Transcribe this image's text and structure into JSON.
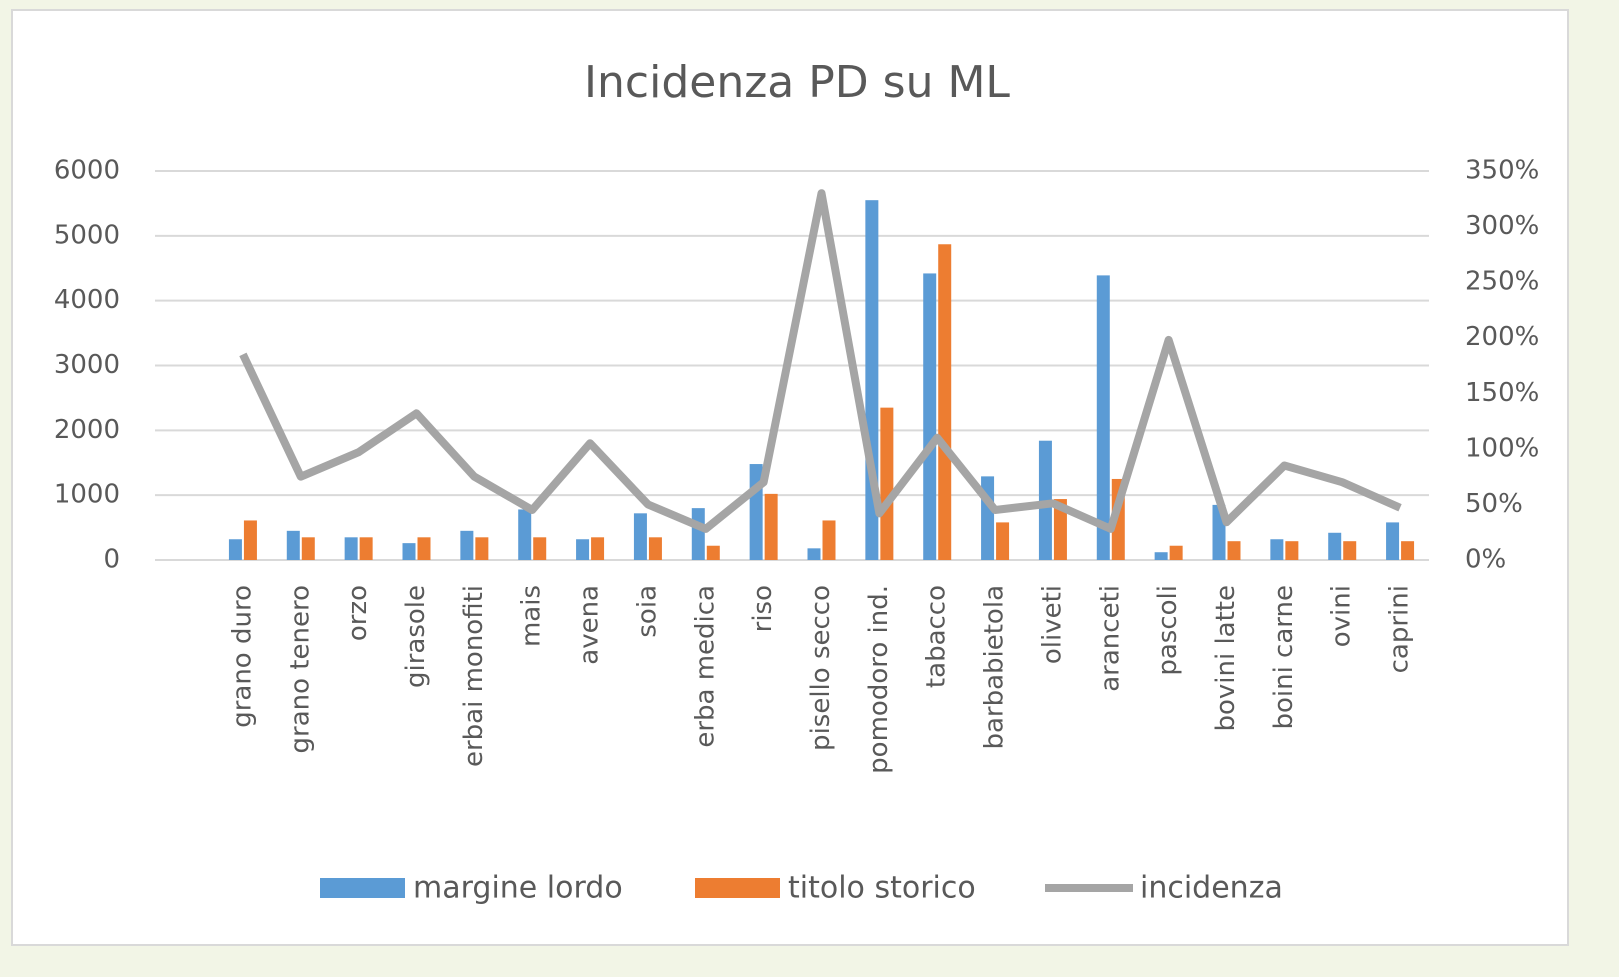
{
  "chart_data": {
    "type": "bar",
    "title": "Incidenza PD su ML",
    "categories": [
      "grano duro",
      "grano tenero",
      "orzo",
      "girasole",
      "erbai monofiti",
      "mais",
      "avena",
      "soia",
      "erba medica",
      "riso",
      "pisello  secco",
      "pomodoro ind.",
      "tabacco",
      "barbabietola",
      "oliveti",
      "aranceti",
      "pascoli",
      "bovini latte",
      "boini carne",
      "ovini",
      "caprini"
    ],
    "series": [
      {
        "name": "margine lordo",
        "type": "bar",
        "color": "#5b9bd5",
        "values": [
          320,
          450,
          350,
          260,
          450,
          780,
          320,
          720,
          800,
          1480,
          180,
          5550,
          4420,
          1290,
          1840,
          4390,
          120,
          850,
          320,
          420,
          580
        ]
      },
      {
        "name": "titolo storico",
        "type": "bar",
        "color": "#ed7d31",
        "values": [
          610,
          350,
          350,
          350,
          350,
          350,
          350,
          350,
          220,
          1020,
          610,
          2350,
          4870,
          580,
          940,
          1250,
          220,
          290,
          290,
          290,
          290
        ]
      },
      {
        "name": "incidenza",
        "type": "line",
        "axis": "y2",
        "color": "#a5a5a5",
        "values": [
          185,
          75,
          97,
          132,
          75,
          45,
          105,
          50,
          28,
          70,
          330,
          42,
          110,
          45,
          51,
          28,
          198,
          34,
          85,
          70,
          47
        ]
      }
    ],
    "ylim": [
      0,
      6000
    ],
    "yticks": [
      0,
      1000,
      2000,
      3000,
      4000,
      5000,
      6000
    ],
    "y2lim": [
      0,
      350
    ],
    "y2ticks": [
      {
        "value": 0,
        "label": "0%"
      },
      {
        "value": 50,
        "label": "50%"
      },
      {
        "value": 100,
        "label": "100%"
      },
      {
        "value": 150,
        "label": "150%"
      },
      {
        "value": 200,
        "label": "200%"
      },
      {
        "value": 250,
        "label": "250%"
      },
      {
        "value": 300,
        "label": "300%"
      },
      {
        "value": 350,
        "label": "350%"
      }
    ],
    "grid": true,
    "legend": "bottom"
  }
}
